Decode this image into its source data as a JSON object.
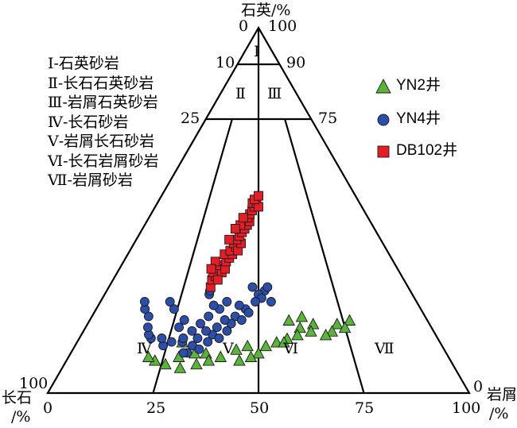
{
  "apex_labels": {
    "top": "石英/%",
    "left_line1": "长石",
    "left_line2": "/%",
    "right_line1": "岩屑",
    "right_line2": "/%"
  },
  "tick_labels": {
    "top_0": "0",
    "top_100": "100",
    "t10": "10",
    "t90": "90",
    "t25": "25",
    "t75": "75",
    "left_100": "100",
    "right_0": "0",
    "b0": "0",
    "b25": "25",
    "b50": "50",
    "b75": "75",
    "b100": "100"
  },
  "field_labels": {
    "I": "Ⅰ",
    "II": "Ⅱ",
    "III": "Ⅲ",
    "IV": "Ⅳ",
    "V": "Ⅴ",
    "VI": "Ⅵ",
    "VII": "Ⅶ"
  },
  "classes": [
    "Ⅰ-石英砂岩",
    "Ⅱ-长石石英砂岩",
    "Ⅲ-岩屑石英砂岩",
    "Ⅳ-长石砂岩",
    "Ⅴ-岩屑长石砂岩",
    "Ⅵ-长石岩屑砂岩",
    "Ⅶ-岩屑砂岩"
  ],
  "chart_data": {
    "type": "scatter",
    "diagram": "ternary",
    "axes": [
      "石英",
      "长石",
      "岩屑"
    ],
    "series": [
      {
        "name": "YN2井",
        "marker": "triangle",
        "color": "#5ab43c",
        "points": [
          [
            0.77,
            0.8
          ],
          [
            0.73,
            0.81
          ],
          [
            0.71,
            0.83
          ],
          [
            0.69,
            0.84
          ],
          [
            0.75,
            0.82
          ],
          [
            0.63,
            0.79
          ],
          [
            0.59,
            0.8
          ],
          [
            0.66,
            0.81
          ],
          [
            0.62,
            0.82
          ],
          [
            0.65,
            0.83
          ],
          [
            0.61,
            0.84
          ],
          [
            0.58,
            0.85
          ],
          [
            0.55,
            0.86
          ],
          [
            0.52,
            0.87
          ],
          [
            0.57,
            0.86
          ],
          [
            0.5,
            0.89
          ],
          [
            0.47,
            0.87
          ],
          [
            0.48,
            0.9
          ],
          [
            0.44,
            0.88
          ],
          [
            0.45,
            0.91
          ],
          [
            0.4,
            0.9
          ],
          [
            0.36,
            0.89
          ],
          [
            0.37,
            0.91
          ],
          [
            0.33,
            0.89
          ],
          [
            0.34,
            0.92
          ],
          [
            0.29,
            0.9
          ],
          [
            0.3,
            0.93
          ],
          [
            0.26,
            0.92
          ],
          [
            0.23,
            0.91
          ],
          [
            0.21,
            0.9
          ],
          [
            0.29,
            0.86
          ]
        ]
      },
      {
        "name": "YN4井",
        "marker": "circle",
        "color": "#2c4ea8",
        "points": [
          [
            0.54,
            0.75
          ],
          [
            0.52,
            0.72
          ],
          [
            0.5,
            0.73
          ],
          [
            0.48,
            0.71
          ],
          [
            0.51,
            0.74
          ],
          [
            0.49,
            0.75
          ],
          [
            0.46,
            0.77
          ],
          [
            0.44,
            0.76
          ],
          [
            0.47,
            0.78
          ],
          [
            0.43,
            0.79
          ],
          [
            0.45,
            0.8
          ],
          [
            0.42,
            0.81
          ],
          [
            0.4,
            0.8
          ],
          [
            0.38,
            0.82
          ],
          [
            0.41,
            0.83
          ],
          [
            0.37,
            0.84
          ],
          [
            0.35,
            0.83
          ],
          [
            0.39,
            0.85
          ],
          [
            0.36,
            0.86
          ],
          [
            0.33,
            0.85
          ],
          [
            0.32,
            0.87
          ],
          [
            0.29,
            0.86
          ],
          [
            0.34,
            0.88
          ],
          [
            0.31,
            0.89
          ],
          [
            0.26,
            0.86
          ],
          [
            0.24,
            0.87
          ],
          [
            0.3,
            0.89
          ],
          [
            0.33,
            0.81
          ],
          [
            0.31,
            0.83
          ],
          [
            0.28,
            0.8
          ],
          [
            0.27,
            0.82
          ],
          [
            0.23,
            0.85
          ],
          [
            0.2,
            0.85
          ],
          [
            0.19,
            0.84
          ],
          [
            0.18,
            0.82
          ],
          [
            0.17,
            0.79
          ],
          [
            0.15,
            0.77
          ],
          [
            0.14,
            0.75
          ],
          [
            0.24,
            0.77
          ],
          [
            0.22,
            0.75
          ],
          [
            0.38,
            0.77
          ],
          [
            0.36,
            0.76
          ],
          [
            0.4,
            0.75
          ],
          [
            0.35,
            0.79
          ],
          [
            0.29,
            0.85
          ],
          [
            0.53,
            0.71
          ],
          [
            0.34,
            0.73
          ],
          [
            0.34,
            0.72
          ]
        ]
      },
      {
        "name": "DB102井",
        "marker": "square",
        "color": "#e41e26",
        "points": [
          [
            0.34,
            0.71
          ],
          [
            0.34,
            0.69
          ],
          [
            0.35,
            0.68
          ],
          [
            0.34,
            0.67
          ],
          [
            0.35,
            0.66
          ],
          [
            0.37,
            0.67
          ],
          [
            0.36,
            0.65
          ],
          [
            0.38,
            0.66
          ],
          [
            0.38,
            0.64
          ],
          [
            0.39,
            0.63
          ],
          [
            0.37,
            0.62
          ],
          [
            0.4,
            0.62
          ],
          [
            0.39,
            0.61
          ],
          [
            0.41,
            0.6
          ],
          [
            0.4,
            0.59
          ],
          [
            0.42,
            0.61
          ],
          [
            0.43,
            0.59
          ],
          [
            0.41,
            0.58
          ],
          [
            0.42,
            0.57
          ],
          [
            0.43,
            0.56
          ],
          [
            0.44,
            0.55
          ],
          [
            0.45,
            0.54
          ],
          [
            0.44,
            0.53
          ],
          [
            0.46,
            0.53
          ],
          [
            0.45,
            0.52
          ],
          [
            0.42,
            0.54
          ],
          [
            0.46,
            0.51
          ],
          [
            0.47,
            0.5
          ],
          [
            0.48,
            0.49
          ],
          [
            0.47,
            0.48
          ],
          [
            0.49,
            0.48
          ],
          [
            0.5,
            0.49
          ],
          [
            0.48,
            0.47
          ],
          [
            0.5,
            0.46
          ],
          [
            0.43,
            0.52
          ],
          [
            0.36,
            0.69
          ],
          [
            0.34,
            0.64
          ],
          [
            0.33,
            0.66
          ],
          [
            0.4,
            0.55
          ],
          [
            0.38,
            0.58
          ]
        ]
      }
    ]
  },
  "legend": [
    "YN2井",
    "YN4井",
    "DB102井"
  ]
}
